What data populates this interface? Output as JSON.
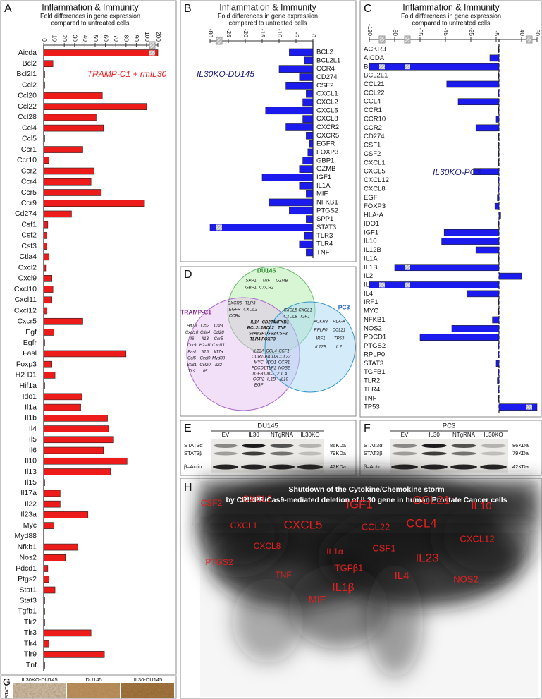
{
  "chart_data": [
    {
      "type": "bar",
      "panel": "A",
      "title": "Inflammation & Immunity",
      "subtitle": [
        "Fold differences in gene expression",
        "compared to untreated cells"
      ],
      "annotation": "TRAMP-C1 + rmIL30",
      "color": "#ee1b1b",
      "grid": false,
      "categories": [
        "Aicda",
        "Bcl2",
        "Bcl2l1",
        "Ccl2",
        "Ccl20",
        "Ccl22",
        "Ccl28",
        "Ccl4",
        "Ccl5",
        "Ccr1",
        "Ccr10",
        "Ccr2",
        "Ccr4",
        "Ccr5",
        "Ccr9",
        "Cd274",
        "Csf1",
        "Csf2",
        "Csf3",
        "Ctla4",
        "Cxcl2",
        "Cxcl9",
        "Cxcl10",
        "Cxcl11",
        "Cxcl12",
        "Cxcr5",
        "Egf",
        "Egfr",
        "Fasl",
        "Foxp3",
        "H2-D1",
        "Hif1a",
        "Ido1",
        "Il1a",
        "Il1b",
        "Il4",
        "Il5",
        "Il6",
        "Il10",
        "Il13",
        "Il15",
        "Il17a",
        "Il22",
        "Il23a",
        "Myc",
        "Myd88",
        "Nfkb1",
        "Nos2",
        "Pdcd1",
        "Ptgs2",
        "Stat1",
        "Stat3",
        "Tgfb1",
        "Tlr2",
        "Tlr3",
        "Tlr4",
        "Tlr9",
        "Tnf"
      ],
      "values": [
        200,
        9,
        1,
        1,
        57,
        100,
        51,
        58,
        1,
        38,
        5,
        49,
        46,
        56,
        98,
        27,
        4,
        3,
        3,
        5,
        2,
        8,
        9,
        8,
        3,
        38,
        10,
        1,
        80,
        8,
        11,
        1,
        37,
        36,
        62,
        63,
        68,
        58,
        81,
        65,
        1,
        16,
        16,
        43,
        10,
        0.5,
        33,
        21,
        4,
        5,
        11,
        1,
        1,
        1,
        46,
        5,
        59,
        1
      ],
      "xlim": [
        0,
        200
      ],
      "xticks": [
        0,
        10,
        20,
        30,
        40,
        50,
        60,
        70,
        80,
        90,
        100,
        200
      ]
    },
    {
      "type": "bar",
      "panel": "B",
      "title": "Inflammation & Immunity",
      "subtitle": [
        "Fold differences in gene expression",
        "compared to untreated cells"
      ],
      "annotation": "IL30KO-DU145",
      "color": "#1b1bee",
      "grid": false,
      "categories": [
        "BCL2",
        "BCL2L1",
        "CCR4",
        "CD274",
        "CSF2",
        "CXCL1",
        "CXCL2",
        "CXCL5",
        "CXCL8",
        "CXCR2",
        "CXCR5",
        "EGFR",
        "FOXP3",
        "GBP1",
        "GZMB",
        "IGF1",
        "IL1A",
        "MIF",
        "NFKB1",
        "PTGS2",
        "SPP1",
        "STAT3",
        "TLR3",
        "TLR4",
        "TNF"
      ],
      "values": [
        -7,
        -2.5,
        -10,
        -4,
        -8,
        -2,
        -3,
        -14,
        -3,
        -8,
        -2,
        -1,
        -1.5,
        -3,
        -4,
        -15,
        -4,
        -2,
        -13,
        -7,
        -2,
        -80,
        -2.5,
        -4,
        -2
      ],
      "xlim": [
        -80,
        0
      ],
      "xticks": [
        -80,
        -25,
        -20,
        -15,
        -10,
        -5,
        0
      ]
    },
    {
      "type": "bar",
      "panel": "C",
      "title": "Inflammation & Immunity",
      "subtitle": [
        "Fold differences in gene expression",
        "compared to untreated cells"
      ],
      "annotation": "IL30KO-PC3",
      "color": "#1b1bee",
      "grid": false,
      "categories": [
        "ACKR3",
        "AICDA",
        "BCL2",
        "BCL2L1",
        "CCL21",
        "CCL22",
        "CCL4",
        "CCR1",
        "CCR10",
        "CCR2",
        "CD274",
        "CSF1",
        "CSF2",
        "CXCL1",
        "CXCL5",
        "CXCL12",
        "CXCL8",
        "EGF",
        "FOXP3",
        "HLA-A",
        "IDO1",
        "IGF1",
        "IL10",
        "IL12B",
        "IL1A",
        "IL1B",
        "IL2",
        "IL23A",
        "IL4",
        "IRF1",
        "MYC",
        "NFKB1",
        "NOS2",
        "PDCD1",
        "PTGS2",
        "RPLP0",
        "STAT3",
        "TGFB1",
        "TLR2",
        "TLR4",
        "TNF",
        "TP53"
      ],
      "values": [
        -1,
        -10,
        -120,
        -1,
        -44,
        -2,
        -35,
        -1,
        -5,
        -21,
        -1,
        -1,
        -1,
        -1,
        -23,
        -2,
        -2,
        -3,
        -6,
        3,
        -1,
        -46,
        -48,
        -21,
        -1,
        -80,
        40,
        -120,
        -28,
        -1,
        -1,
        -8,
        -40,
        -65,
        -2,
        -2,
        -5,
        -2,
        -3,
        -2,
        -1,
        80
      ],
      "xlim": [
        -120,
        80
      ],
      "xticks": [
        -120,
        -80,
        -65,
        -45,
        -25,
        -5,
        40,
        80
      ]
    }
  ],
  "venn": {
    "panel": "D",
    "sets": [
      "DU145",
      "TRAMP-C1",
      "PC3"
    ],
    "regions": {
      "a": [
        "SPP1",
        "MIF",
        "GZMB",
        "GBP1",
        "CXCR2"
      ],
      "ab": [
        "CXCR5",
        "TLR3",
        "EGFR",
        "CXCL2",
        "CCR4"
      ],
      "ac": [
        "CXCL5",
        "CXCL1",
        "CXCL8",
        "IGF1"
      ],
      "abc": [
        "IL1A",
        "CD274",
        "NFKB1",
        "BCL2L1",
        "BCL2",
        "TNF",
        "STAT3",
        "PTGS2",
        "CSF2",
        "TLR4",
        "FOXP3"
      ],
      "c": [
        "ACKR3",
        "HLA-A",
        "RPLP0",
        "CCL21",
        "IRF1",
        "TP53",
        "IL12B",
        "IL2"
      ],
      "bc": [
        "IL23A",
        "CCL4",
        "CSF1",
        "CCR10",
        "AICDA",
        "CCL22",
        "MYC",
        "IDO1",
        "CCR1",
        "PDCD1",
        "TLR2",
        "NOS2",
        "TGFB1",
        "CXCL12",
        "IL4",
        "CCR2",
        "IL1B",
        "IL10",
        "EGF"
      ],
      "b": [
        "Hif1a",
        "Ccl2",
        "Csf3",
        "Cxcl10",
        "Ctla4",
        "Ccl28",
        "Il6",
        "Il13",
        "Ccr5",
        "Ccr9",
        "H2-d1",
        "Cxcl11",
        "Fasl",
        "Il15",
        "Il17a",
        "Ccl5",
        "Cxcl9",
        "Myd88",
        "Stat1",
        "Ccl20",
        "Il22",
        "Tlr9",
        "Il5"
      ]
    }
  },
  "blots": [
    {
      "panel": "E",
      "cell_line": "DU145",
      "lanes": [
        "EV",
        "IL30",
        "NTgRNA",
        "IL30KO"
      ],
      "rows": [
        "STAT3α",
        "STAT3β",
        "β–Actin"
      ],
      "sizes": [
        "86KDa",
        "79KDa",
        "42KDa"
      ]
    },
    {
      "panel": "F",
      "cell_line": "PC3",
      "lanes": [
        "EV",
        "IL30",
        "NTgRNA",
        "IL30KO"
      ],
      "rows": [
        "STAT3α",
        "STAT3β",
        "β–Actin"
      ],
      "sizes": [
        "86KDa",
        "79KDa",
        "42KDa"
      ]
    }
  ],
  "ihc": {
    "panel": "G",
    "samples": [
      "IL30KO-DU145",
      "DU145",
      "IL30-DU145"
    ],
    "stain": "STAT3"
  },
  "storm": {
    "panel": "H",
    "title": [
      "Shutdown of the Cytokine/Chemokine storm",
      "by CRISPR/Cas9-mediated deletion of IL30 gene in human Prostate Cancer cells"
    ],
    "words": [
      "CSF2",
      "CXCL2",
      "IGF1",
      "CCL21",
      "IL10",
      "CXCL1",
      "CXCL5",
      "CCL22",
      "CCL4",
      "CXCL12",
      "CXCL8",
      "IL1α",
      "CSF1",
      "IL23",
      "PTGS2",
      "TNF",
      "TGFβ1",
      "IL4",
      "NOS2",
      "IL1β",
      "MIF"
    ]
  }
}
